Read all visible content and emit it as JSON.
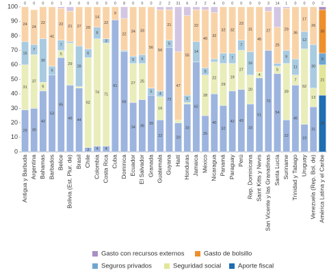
{
  "chart_data": {
    "type": "stacked_bar",
    "categories": [
      "Antigua y Barbuda",
      "Argentina",
      "Bahamas",
      "Barbados",
      "Belice",
      "Bolivia (Est. Plur. de)",
      "Brasil",
      "Chile",
      "Colombia",
      "Costa Rica",
      "Cuba",
      "Dominica",
      "Ecuador",
      "El Salvador",
      "Granada",
      "Guatemala",
      "Guyana",
      "Haití",
      "Honduras",
      "Jamaica",
      "México",
      "Nicaragua",
      "Panamá",
      "Paraguay",
      "Perú",
      "Rep. Dominicana",
      "Saint Kitts y Nevis",
      "San Vicente y las Granadinas",
      "Santa Lucía",
      "Suriname",
      "Trinidad y Tabago",
      "Uruguay",
      "Venezuela (Rep. Bol. de)",
      "América Latina y el Caribe"
    ],
    "highlight": "América Latina y el Caribe",
    "series": [
      {
        "name": "Aporte fiscal",
        "color": "#1f6db3",
        "light_color": "#9db5de",
        "values": [
          29,
          30,
          42,
          53,
          65,
          46,
          44,
          3,
          4,
          4,
          91,
          69,
          34,
          36,
          39,
          22,
          72,
          20,
          33,
          62,
          25,
          40,
          32,
          42,
          43,
          33,
          51,
          70,
          54,
          22,
          46,
          19,
          31,
          39
        ]
      },
      {
        "name": "Seguridad social",
        "color": "#e3e69a",
        "light_color": "#e9edba",
        "values": [
          31,
          37,
          6,
          0,
          5,
          29,
          1,
          62,
          74,
          71,
          0,
          0,
          27,
          25,
          0,
          16,
          0,
          2,
          1,
          0,
          28,
          22,
          29,
          19,
          27,
          20,
          4,
          0,
          5,
          39,
          7,
          52,
          13,
          21
        ]
      },
      {
        "name": "Seguros privados",
        "color": "#6fa6cf",
        "light_color": "#a9cbe0",
        "values": [
          16,
          7,
          30,
          6,
          7,
          1,
          28,
          6,
          8,
          3,
          0,
          1,
          5,
          6,
          5,
          4,
          5,
          0,
          5,
          14,
          5,
          2,
          7,
          7,
          7,
          16,
          0,
          0,
          2,
          9,
          11,
          12,
          30,
          8
        ]
      },
      {
        "name": "Gasto de bolsillo",
        "color": "#ef8f2c",
        "light_color": "#f9d3a8",
        "values": [
          24,
          24,
          22,
          41,
          22,
          21,
          27,
          29,
          14,
          22,
          9,
          22,
          34,
          33,
          56,
          56,
          21,
          47,
          55,
          22,
          40,
          32,
          32,
          32,
          23,
          31,
          45,
          27,
          25,
          29,
          36,
          17,
          26,
          30
        ]
      },
      {
        "name": "Gasto con recursos externos",
        "color": "#a98fc4",
        "light_color": "#d3c6e2",
        "values": [
          0,
          0,
          0,
          0,
          1,
          3,
          0,
          0,
          0,
          0,
          0,
          8,
          0,
          0,
          0,
          2,
          2,
          31,
          6,
          2,
          2,
          4,
          0,
          0,
          0,
          0,
          0,
          3,
          14,
          1,
          0,
          0,
          0,
          2
        ]
      }
    ],
    "ylim": [
      0,
      100
    ],
    "yticks": [
      0,
      10,
      20,
      30,
      40,
      50,
      60,
      70,
      80,
      90,
      100
    ],
    "grid": false
  }
}
